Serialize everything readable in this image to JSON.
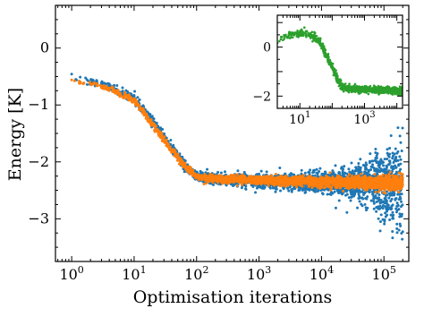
{
  "chart_data": [
    {
      "panel": "main",
      "type": "scatter",
      "title": "",
      "xlabel": "Optimisation iterations",
      "ylabel": "Energy [K]",
      "xscale": "log",
      "xlim": [
        0.55,
        250000
      ],
      "ylim": [
        -3.75,
        0.75
      ],
      "x_ticks": [
        1,
        10,
        100,
        1000,
        10000,
        100000
      ],
      "x_tick_labels": [
        "10^0",
        "10^1",
        "10^2",
        "10^3",
        "10^4",
        "10^5"
      ],
      "y_ticks": [
        0,
        -1,
        -2,
        -3
      ],
      "y_tick_labels": [
        "0",
        "−1",
        "−2",
        "−3"
      ],
      "grid": false,
      "legend": "none",
      "series": [
        {
          "color": "#1f77b4",
          "marker": "dot",
          "trend_x": [
            1,
            3,
            10,
            20,
            40,
            70,
            100,
            200,
            1000,
            5000,
            10000,
            30000,
            100000,
            200000
          ],
          "trend_y": [
            -0.55,
            -0.62,
            -0.88,
            -1.3,
            -1.75,
            -2.1,
            -2.25,
            -2.3,
            -2.33,
            -2.35,
            -2.36,
            -2.37,
            -2.38,
            -2.38
          ],
          "spread_x": [
            1,
            100,
            1000,
            10000,
            30000,
            100000,
            200000
          ],
          "spread_y": [
            0.06,
            0.08,
            0.1,
            0.14,
            0.25,
            0.5,
            0.85
          ]
        },
        {
          "color": "#ff7f0e",
          "marker": "dot",
          "trend_x": [
            1,
            3,
            10,
            20,
            40,
            70,
            100,
            200,
            1000,
            5000,
            10000,
            30000,
            100000,
            200000
          ],
          "trend_y": [
            -0.58,
            -0.66,
            -0.92,
            -1.35,
            -1.8,
            -2.12,
            -2.26,
            -2.3,
            -2.32,
            -2.34,
            -2.35,
            -2.36,
            -2.37,
            -2.37
          ],
          "spread_x": [
            1,
            100,
            1000,
            10000,
            100000,
            200000
          ],
          "spread_y": [
            0.04,
            0.06,
            0.06,
            0.08,
            0.1,
            0.12
          ]
        }
      ]
    },
    {
      "panel": "inset",
      "type": "scatter",
      "title": "",
      "xlabel": "",
      "ylabel": "",
      "xscale": "log",
      "xlim": [
        2,
        15000
      ],
      "ylim": [
        -2.5,
        1.3
      ],
      "x_ticks": [
        10,
        1000
      ],
      "x_tick_labels": [
        "10^1",
        "10^3"
      ],
      "y_ticks": [
        0,
        -2
      ],
      "y_tick_labels": [
        "0",
        "−2"
      ],
      "grid": false,
      "legend": "none",
      "series": [
        {
          "color": "#2ca02c",
          "marker": "dot",
          "trend_x": [
            2,
            5,
            10,
            20,
            40,
            60,
            100,
            150,
            200,
            300,
            1000,
            5000,
            15000
          ],
          "trend_y": [
            0.3,
            0.5,
            0.55,
            0.5,
            0.25,
            -0.2,
            -0.8,
            -1.35,
            -1.6,
            -1.68,
            -1.72,
            -1.76,
            -1.78
          ],
          "spread_x": [
            2,
            100,
            1000,
            15000
          ],
          "spread_y": [
            0.15,
            0.15,
            0.12,
            0.12
          ]
        }
      ]
    }
  ]
}
